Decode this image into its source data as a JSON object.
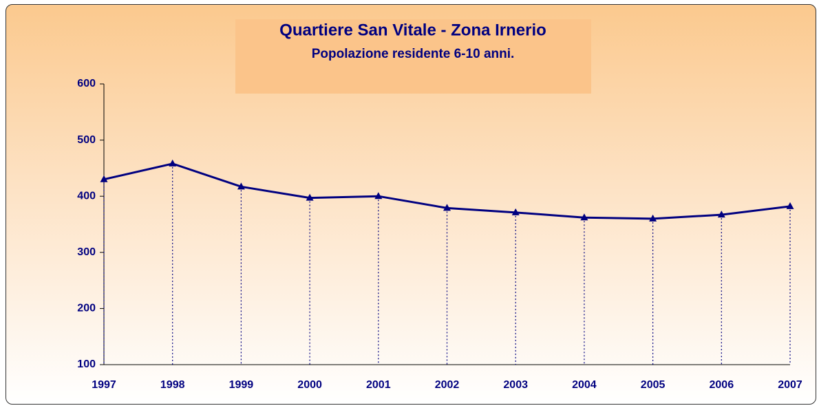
{
  "chart_data": {
    "type": "line",
    "title": "Quartiere San Vitale - Zona Irnerio",
    "subtitle": "Popolazione residente 6-10 anni.",
    "categories": [
      "1997",
      "1998",
      "1999",
      "2000",
      "2001",
      "2002",
      "2003",
      "2004",
      "2005",
      "2006",
      "2007"
    ],
    "series": [
      {
        "name": "Popolazione",
        "color": "#000080",
        "values": [
          430,
          458,
          417,
          397,
          400,
          379,
          371,
          362,
          360,
          367,
          382
        ]
      }
    ],
    "ylim": [
      100,
      600
    ],
    "yticks": [
      100,
      200,
      300,
      400,
      500,
      600
    ],
    "grid": false,
    "drop_lines": true
  }
}
